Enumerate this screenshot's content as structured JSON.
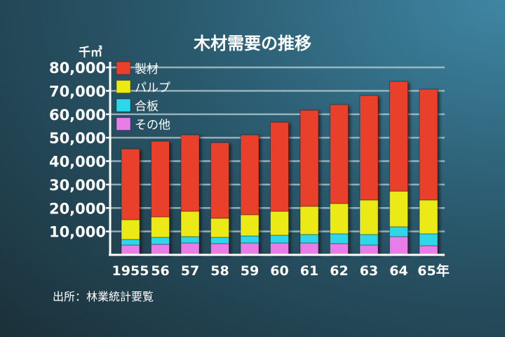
{
  "chart_data": {
    "type": "bar",
    "stacked": true,
    "title": "木材需要の推移",
    "ylabel": "千㎥",
    "xlabel": "",
    "categories": [
      "1955",
      "56",
      "57",
      "58",
      "59",
      "60",
      "61",
      "62",
      "63",
      "64",
      "65年"
    ],
    "ylim": [
      0,
      80000
    ],
    "yticks": [
      "10,000",
      "20,000",
      "30,000",
      "40,000",
      "50,000",
      "60,000",
      "70,000",
      "80,000"
    ],
    "grid": true,
    "legend_position": "top-left",
    "series": [
      {
        "name": "その他",
        "color": "#e87de8",
        "values": [
          4200,
          4500,
          5100,
          4800,
          5100,
          5100,
          5100,
          4800,
          4200,
          7800,
          3900
        ]
      },
      {
        "name": "合板",
        "color": "#2dd6e8",
        "values": [
          2400,
          3000,
          2700,
          2700,
          3000,
          3300,
          3600,
          4200,
          4500,
          4200,
          5100
        ]
      },
      {
        "name": "パルプ",
        "color": "#ecea12",
        "values": [
          8400,
          8700,
          10800,
          8100,
          9000,
          10200,
          12000,
          12900,
          14700,
          15200,
          14400
        ]
      },
      {
        "name": "製材",
        "color": "#e8402a",
        "values": [
          30200,
          32300,
          32600,
          32300,
          34100,
          38000,
          41000,
          42200,
          44600,
          46800,
          47300
        ]
      }
    ],
    "legend_order": [
      "製材",
      "パルプ",
      "合板",
      "その他"
    ],
    "source": "出所：林業統計要覧"
  }
}
